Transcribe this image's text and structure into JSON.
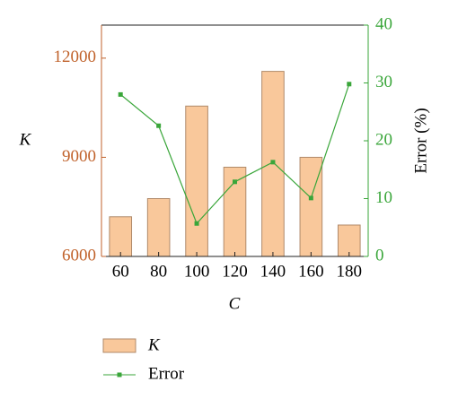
{
  "chart_data": {
    "type": "bar",
    "x_label": "C",
    "y_label": "K",
    "y2_label": "Error (%)",
    "categories": [
      "60",
      "80",
      "100",
      "120",
      "140",
      "160",
      "180"
    ],
    "series": [
      {
        "name": "K",
        "type": "bar",
        "color": "#f9c89b",
        "values": [
          7200,
          7750,
          10550,
          8700,
          11600,
          9000,
          6950
        ]
      },
      {
        "name": "Error",
        "type": "line",
        "axis": "y2",
        "color": "#3aa63a",
        "values": [
          28,
          22.6,
          5.7,
          12.9,
          16.3,
          10.1,
          29.8
        ]
      }
    ],
    "ylim": [
      6000,
      13000
    ],
    "yticks": [
      6000,
      9000,
      12000
    ],
    "y2lim": [
      0,
      40
    ],
    "y2ticks": [
      0,
      10,
      20,
      30,
      40
    ],
    "y_color": "#c0622b",
    "y2_color": "#3aa63a"
  }
}
